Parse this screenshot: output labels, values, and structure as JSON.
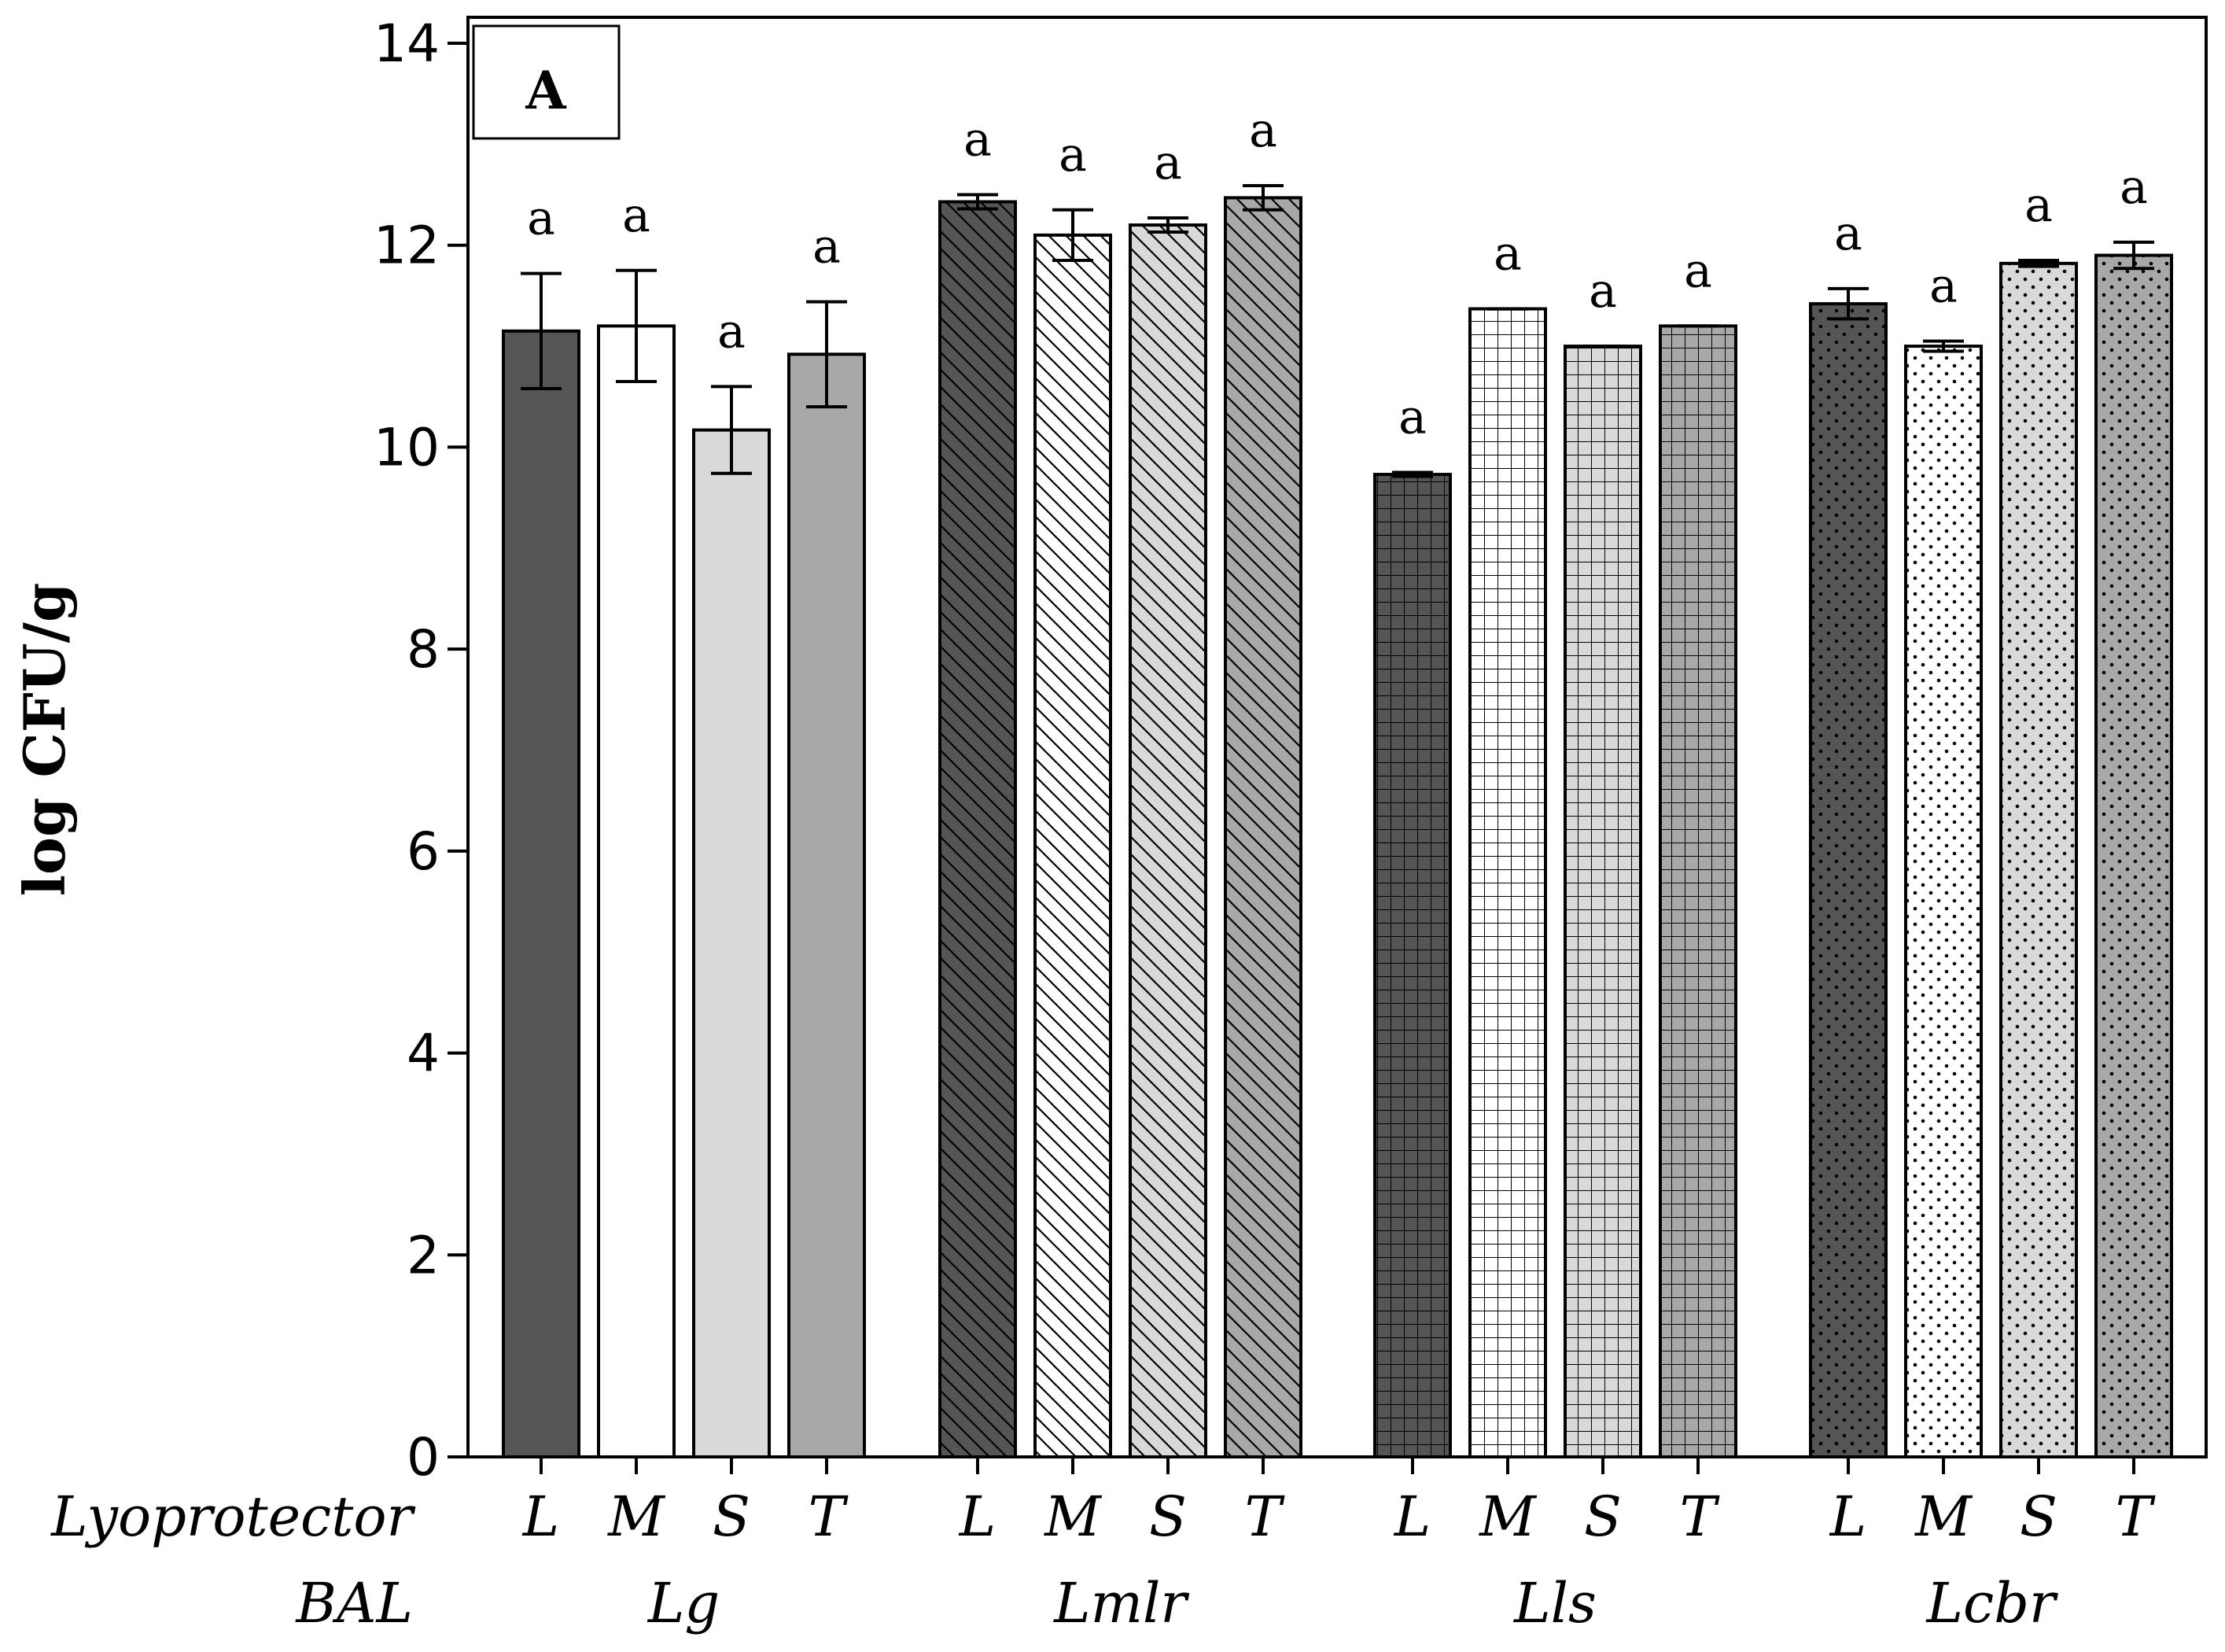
{
  "chart_data": {
    "type": "bar",
    "panel_label": "A",
    "ylabel": "log CFU/g",
    "ylim": [
      0,
      14
    ],
    "yticks": [
      0,
      2,
      4,
      6,
      8,
      10,
      12,
      14
    ],
    "row_labels": {
      "lyoprotector": "Lyoprotector",
      "bal": "BAL"
    },
    "groups": [
      {
        "name": "Lg",
        "bars": [
          {
            "lyoprotector": "L",
            "value": 11.15,
            "error": 0.57,
            "sig": "a",
            "fill": "#555555",
            "pattern": "none"
          },
          {
            "lyoprotector": "M",
            "value": 11.2,
            "error": 0.55,
            "sig": "a",
            "fill": "#ffffff",
            "pattern": "none"
          },
          {
            "lyoprotector": "S",
            "value": 10.17,
            "error": 0.43,
            "sig": "a",
            "fill": "#d9d9d9",
            "pattern": "none"
          },
          {
            "lyoprotector": "T",
            "value": 10.92,
            "error": 0.52,
            "sig": "a",
            "fill": "#a8a8a8",
            "pattern": "none"
          }
        ]
      },
      {
        "name": "Lmlr",
        "bars": [
          {
            "lyoprotector": "L",
            "value": 12.43,
            "error": 0.07,
            "sig": "a",
            "fill": "#555555",
            "pattern": "diag"
          },
          {
            "lyoprotector": "M",
            "value": 12.1,
            "error": 0.25,
            "sig": "a",
            "fill": "#ffffff",
            "pattern": "diag"
          },
          {
            "lyoprotector": "S",
            "value": 12.2,
            "error": 0.07,
            "sig": "a",
            "fill": "#d9d9d9",
            "pattern": "diag"
          },
          {
            "lyoprotector": "T",
            "value": 12.47,
            "error": 0.12,
            "sig": "a",
            "fill": "#a8a8a8",
            "pattern": "diag"
          }
        ]
      },
      {
        "name": "Lls",
        "bars": [
          {
            "lyoprotector": "L",
            "value": 9.73,
            "error": 0.02,
            "sig": "a",
            "fill": "#555555",
            "pattern": "grid"
          },
          {
            "lyoprotector": "M",
            "value": 11.37,
            "error": 0.0,
            "sig": "a",
            "fill": "#ffffff",
            "pattern": "grid"
          },
          {
            "lyoprotector": "S",
            "value": 11.0,
            "error": 0.0,
            "sig": "a",
            "fill": "#d9d9d9",
            "pattern": "grid"
          },
          {
            "lyoprotector": "T",
            "value": 11.2,
            "error": 0.0,
            "sig": "a",
            "fill": "#a8a8a8",
            "pattern": "grid"
          }
        ]
      },
      {
        "name": "Lcbr",
        "bars": [
          {
            "lyoprotector": "L",
            "value": 11.42,
            "error": 0.15,
            "sig": "a",
            "fill": "#555555",
            "pattern": "dots"
          },
          {
            "lyoprotector": "M",
            "value": 11.0,
            "error": 0.05,
            "sig": "a",
            "fill": "#ffffff",
            "pattern": "dots"
          },
          {
            "lyoprotector": "S",
            "value": 11.82,
            "error": 0.03,
            "sig": "a",
            "fill": "#d9d9d9",
            "pattern": "dots"
          },
          {
            "lyoprotector": "T",
            "value": 11.9,
            "error": 0.13,
            "sig": "a",
            "fill": "#a8a8a8",
            "pattern": "dots"
          }
        ]
      }
    ]
  }
}
